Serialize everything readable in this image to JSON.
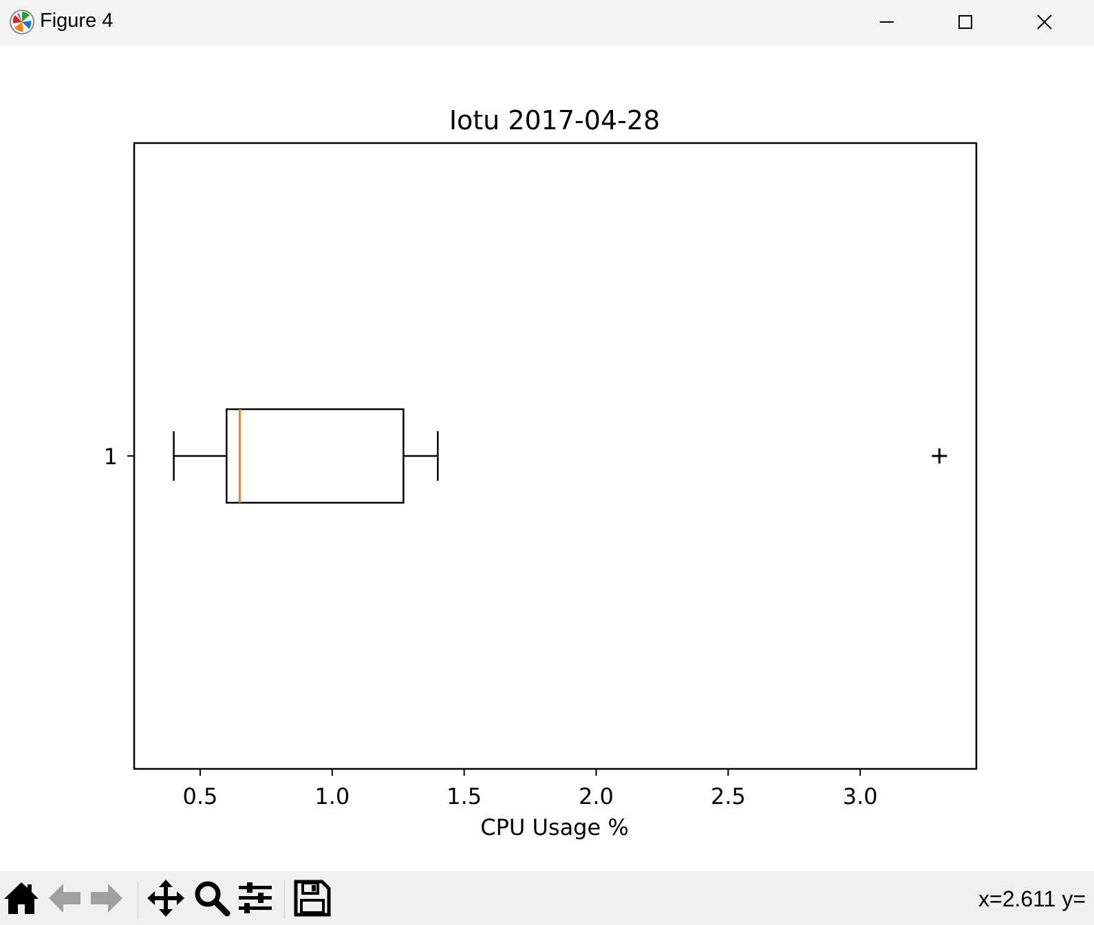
{
  "window": {
    "title": "Figure 4",
    "icon": "matplotlib-logo-icon",
    "controls": [
      "minimize-icon",
      "maximize-icon",
      "close-icon"
    ]
  },
  "chart_data": {
    "type": "boxplot",
    "orientation": "horizontal",
    "title": "Iotu 2017-04-28",
    "xlabel": "CPU Usage %",
    "ylabel": "",
    "xlim": [
      0.25,
      3.44
    ],
    "xticks": [
      "0.5",
      "1.0",
      "1.5",
      "2.0",
      "2.5",
      "3.0"
    ],
    "yticks": [
      "1"
    ],
    "boxes": [
      {
        "position": 1,
        "whisker_low": 0.4,
        "q1": 0.6,
        "median": 0.65,
        "q3": 1.27,
        "whisker_high": 1.4,
        "fliers": [
          3.3
        ]
      }
    ],
    "median_color": "#ff7f0e",
    "box_color": "#000000",
    "grid": false
  },
  "toolbar": {
    "tools": [
      "home-icon",
      "back-arrow-icon",
      "forward-arrow-icon",
      "pan-icon",
      "zoom-icon",
      "configure-subplots-icon",
      "save-icon"
    ],
    "coords": "x=2.611 y="
  }
}
